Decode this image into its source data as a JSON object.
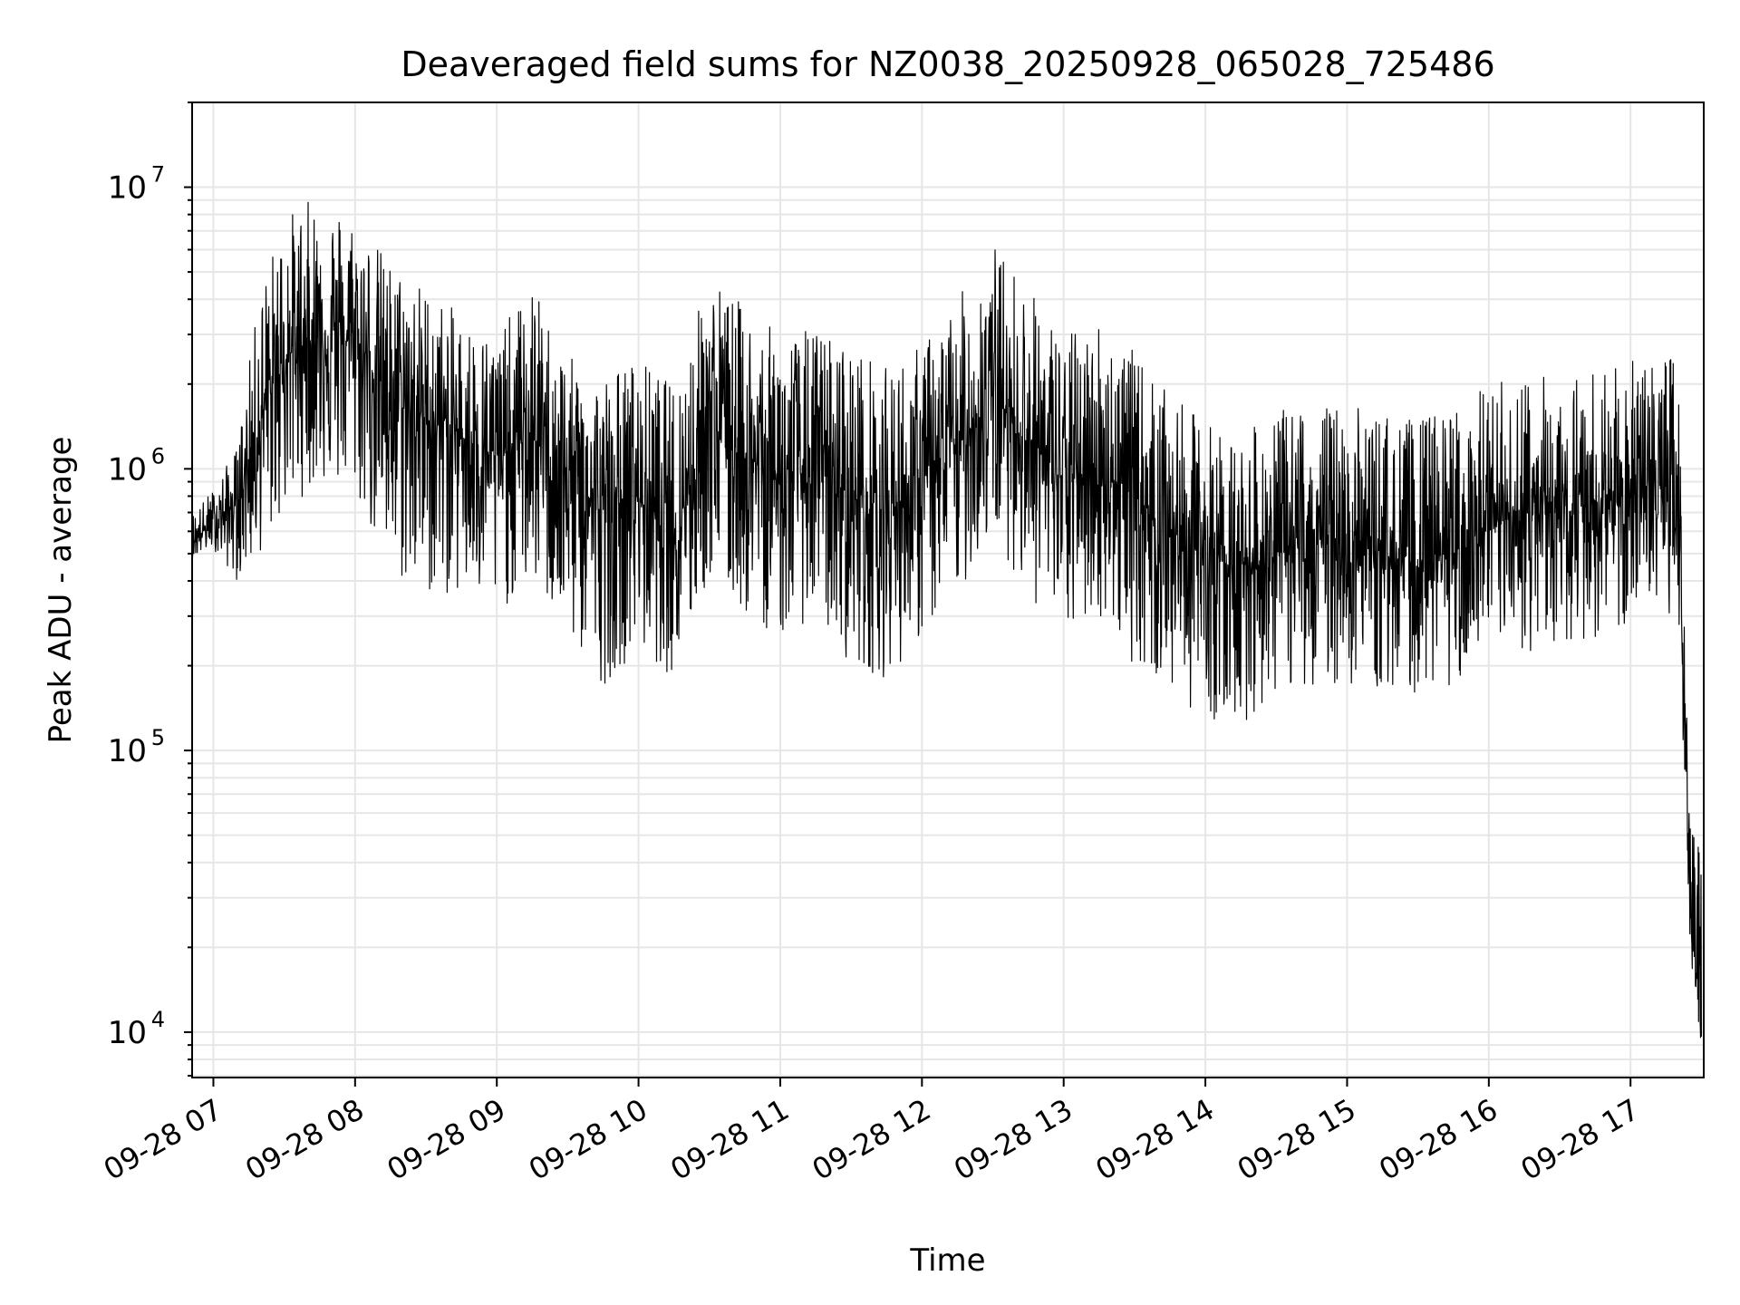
{
  "chart_data": {
    "type": "line",
    "title": "Deaveraged field sums for NZ0038_20250928_065028_725486",
    "xlabel": "Time",
    "ylabel": "Peak ADU - average",
    "y_scale": "log",
    "grid": true,
    "grid_minor": true,
    "xlim": [
      "2025-09-28 06:51",
      "2025-09-28 17:31"
    ],
    "ylim": [
      6900,
      20000000
    ],
    "x_ticks": [
      "09-28 07",
      "09-28 08",
      "09-28 09",
      "09-28 10",
      "09-28 11",
      "09-28 12",
      "09-28 13",
      "09-28 14",
      "09-28 15",
      "09-28 16",
      "09-28 17"
    ],
    "y_ticks": [
      {
        "value": 10000,
        "base": "10",
        "exp": "4"
      },
      {
        "value": 100000,
        "base": "10",
        "exp": "5"
      },
      {
        "value": 1000000,
        "base": "10",
        "exp": "6"
      },
      {
        "value": 10000000,
        "base": "10",
        "exp": "7"
      }
    ],
    "x": [
      "2025-09-28 06:51",
      "2025-09-28 07:00",
      "2025-09-28 07:10",
      "2025-09-28 07:20",
      "2025-09-28 07:30",
      "2025-09-28 07:45",
      "2025-09-28 08:00",
      "2025-09-28 08:15",
      "2025-09-28 08:30",
      "2025-09-28 08:45",
      "2025-09-28 09:00",
      "2025-09-28 09:15",
      "2025-09-28 09:30",
      "2025-09-28 09:45",
      "2025-09-28 10:00",
      "2025-09-28 10:15",
      "2025-09-28 10:30",
      "2025-09-28 10:45",
      "2025-09-28 11:00",
      "2025-09-28 11:15",
      "2025-09-28 11:30",
      "2025-09-28 11:45",
      "2025-09-28 12:00",
      "2025-09-28 12:15",
      "2025-09-28 12:30",
      "2025-09-28 12:45",
      "2025-09-28 13:00",
      "2025-09-28 13:15",
      "2025-09-28 13:30",
      "2025-09-28 13:45",
      "2025-09-28 14:00",
      "2025-09-28 14:15",
      "2025-09-28 14:30",
      "2025-09-28 14:45",
      "2025-09-28 15:00",
      "2025-09-28 15:15",
      "2025-09-28 15:30",
      "2025-09-28 15:45",
      "2025-09-28 16:00",
      "2025-09-28 16:15",
      "2025-09-28 16:30",
      "2025-09-28 16:45",
      "2025-09-28 17:00",
      "2025-09-28 17:10",
      "2025-09-28 17:20",
      "2025-09-28 17:25",
      "2025-09-28 17:30"
    ],
    "series": [
      {
        "values": [
          550000,
          650000,
          750000,
          1500000,
          2500000,
          3000000,
          2800000,
          1800000,
          1500000,
          1300000,
          1100000,
          1300000,
          900000,
          700000,
          800000,
          600000,
          1500000,
          1100000,
          900000,
          1000000,
          800000,
          700000,
          900000,
          1200000,
          1800000,
          1300000,
          900000,
          1000000,
          800000,
          600000,
          500000,
          450000,
          500000,
          550000,
          550000,
          500000,
          450000,
          500000,
          600000,
          700000,
          700000,
          750000,
          800000,
          900000,
          1000000,
          30000,
          10000
        ],
        "band_low": [
          480000,
          520000,
          400000,
          500000,
          700000,
          900000,
          800000,
          400000,
          350000,
          350000,
          300000,
          400000,
          250000,
          170000,
          230000,
          180000,
          400000,
          300000,
          250000,
          300000,
          200000,
          180000,
          250000,
          350000,
          600000,
          350000,
          250000,
          300000,
          200000,
          160000,
          130000,
          120000,
          160000,
          170000,
          170000,
          160000,
          160000,
          170000,
          200000,
          220000,
          230000,
          250000,
          260000,
          300000,
          300000,
          20000,
          9000
        ],
        "band_high": [
          700000,
          850000,
          1200000,
          4500000,
          8000000,
          9500000,
          8000000,
          5500000,
          4500000,
          3500000,
          3000000,
          4500000,
          2500000,
          2200000,
          2500000,
          2000000,
          5000000,
          3800000,
          3000000,
          3200000,
          2800000,
          2300000,
          2800000,
          4000000,
          6500000,
          4500000,
          3000000,
          3500000,
          2600000,
          1800000,
          1500000,
          1300000,
          1600000,
          1700000,
          1700000,
          1600000,
          1500000,
          1700000,
          2000000,
          2200000,
          2200000,
          2300000,
          2400000,
          2500000,
          2600000,
          80000,
          40000
        ]
      }
    ],
    "colors": {
      "line": "#000000",
      "grid": "#e6e6e6",
      "background": "#ffffff"
    }
  }
}
